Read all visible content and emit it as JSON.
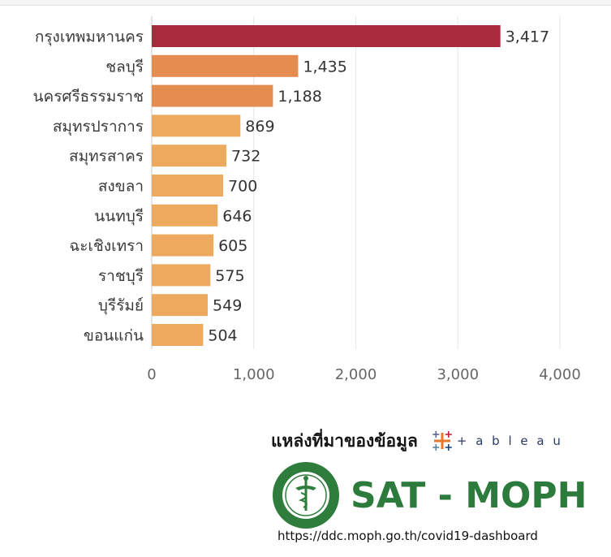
{
  "chart_data": {
    "type": "bar",
    "orientation": "horizontal",
    "categories": [
      "กรุงเทพมหานคร",
      "ชลบุรี",
      "นครศรีธรรมราช",
      "สมุทรปราการ",
      "สมุทรสาคร",
      "สงขลา",
      "นนทบุรี",
      "ฉะเชิงเทรา",
      "ราชบุรี",
      "บุรีรัมย์",
      "ขอนแก่น"
    ],
    "values": [
      3417,
      1435,
      1188,
      869,
      732,
      700,
      646,
      605,
      575,
      549,
      504
    ],
    "value_labels": [
      "3,417",
      "1,435",
      "1,188",
      "869",
      "732",
      "700",
      "646",
      "605",
      "575",
      "549",
      "504"
    ],
    "bar_colors": [
      "#aa2a3d",
      "#e58c50",
      "#e58c50",
      "#eda95e",
      "#eda95e",
      "#eda95e",
      "#eda95e",
      "#eda95e",
      "#eda95e",
      "#eda95e",
      "#eda95e"
    ],
    "xlim": [
      0,
      4000
    ],
    "xticks": [
      0,
      1000,
      2000,
      3000,
      4000
    ],
    "xtick_labels": [
      "0",
      "1,000",
      "2,000",
      "3,000",
      "4,000"
    ],
    "grid": true
  },
  "source": {
    "label": "แหล่งที่มาของข้อมูล",
    "tableau_text": "+ a b l e a u",
    "org_name": "SAT - MOPH",
    "url": "https://ddc.moph.go.th/covid19-dashboard"
  }
}
